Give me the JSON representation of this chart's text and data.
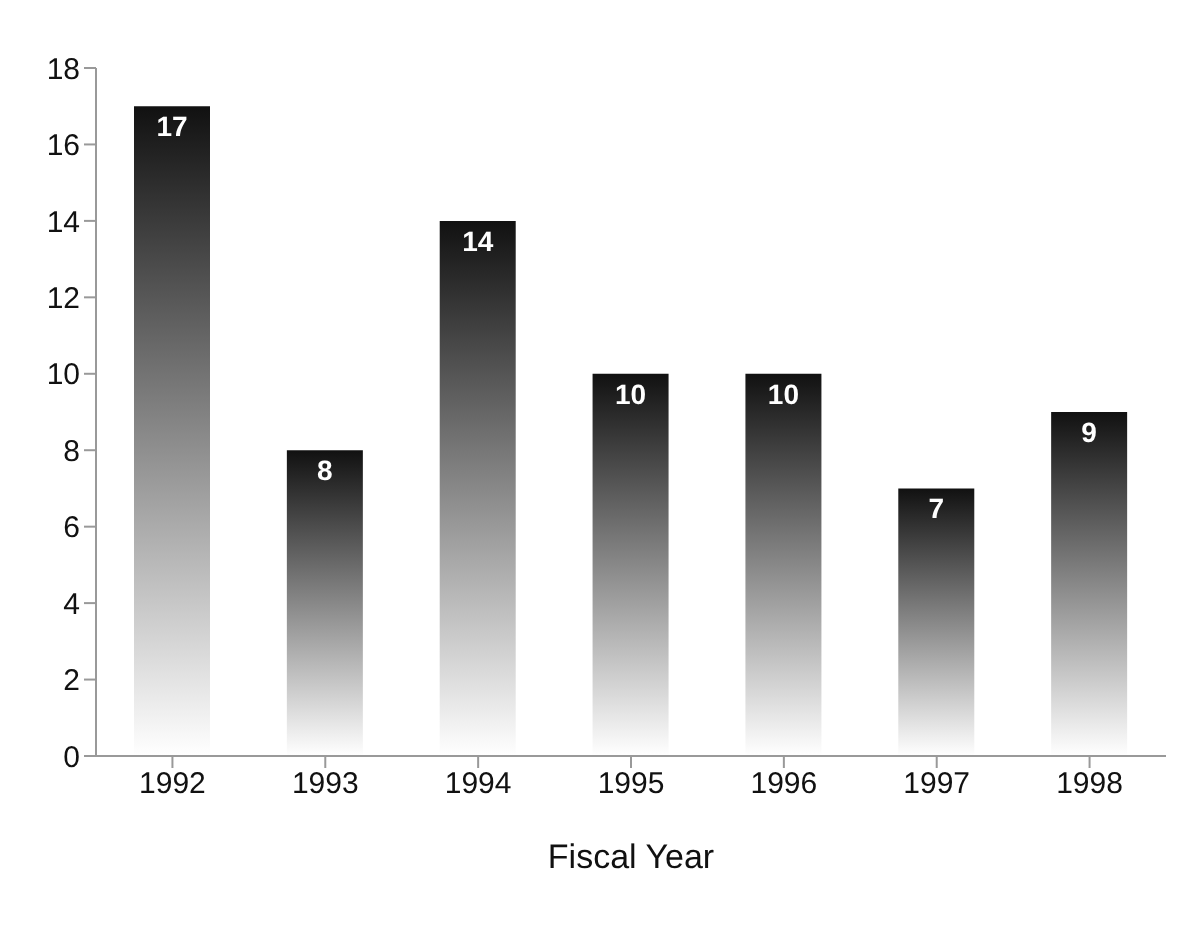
{
  "chart_data": {
    "type": "bar",
    "xlabel": "Fiscal Year",
    "categories": [
      "1992",
      "1993",
      "1994",
      "1995",
      "1996",
      "1997",
      "1998"
    ],
    "values": [
      17,
      8,
      14,
      10,
      10,
      7,
      9
    ],
    "color": "#111111",
    "ylim": [
      0,
      18
    ],
    "yticks": [
      0,
      2,
      4,
      6,
      8,
      10,
      12,
      14,
      16,
      18
    ],
    "grid": false,
    "data_labels": true
  }
}
